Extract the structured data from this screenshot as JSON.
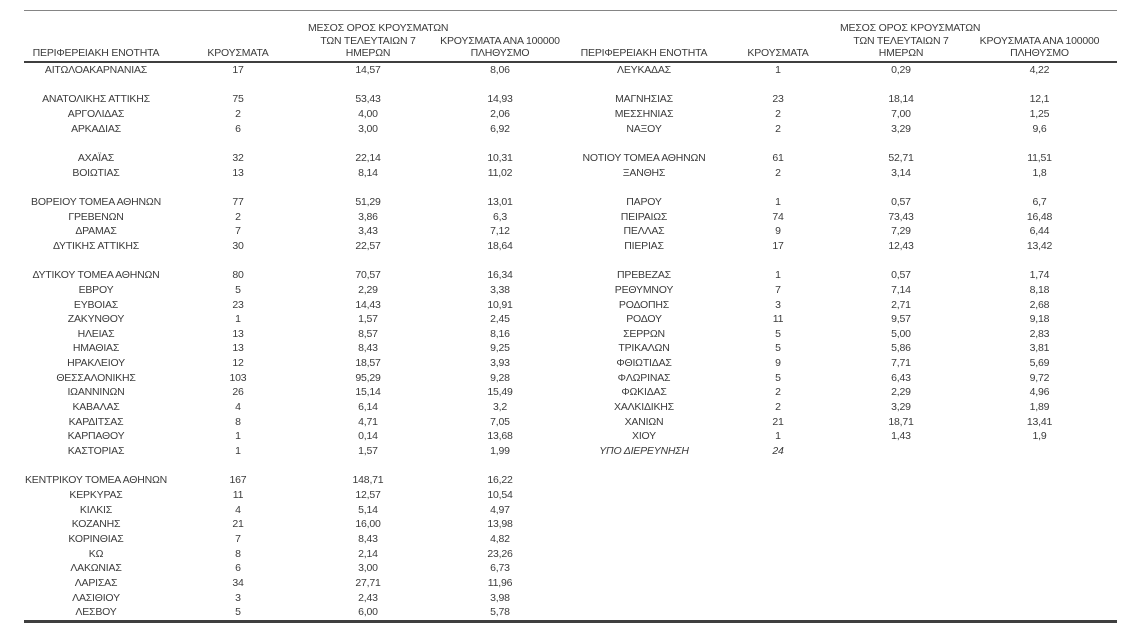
{
  "header": {
    "region": "ΠΕΡΙΦΕΡΕΙΑΚΗ ΕΝΟΤΗΤΑ",
    "cases": "ΚΡΟΥΣΜΑΤΑ",
    "avg7": [
      "ΜΕΣΟΣ ΟΡΟΣ ΚΡΟΥΣΜΑΤΩΝ",
      "ΤΩΝ ΤΕΛΕΥΤΑΙΩΝ 7",
      "ΗΜΕΡΩΝ"
    ],
    "per100k": [
      "ΚΡΟΥΣΜΑΤΑ ΑΝΑ 100000",
      "ΠΛΗΘΥΣΜΟ"
    ]
  },
  "rows": [
    {
      "left": {
        "name": "ΑΙΤΩΛΟΑΚΑΡΝΑΝΙΑΣ",
        "cases": "17",
        "avg7": "14,57",
        "per100k": "8,06"
      },
      "right": {
        "name": "ΛΕΥΚΑΔΑΣ",
        "cases": "1",
        "avg7": "0,29",
        "per100k": "4,22"
      }
    },
    {
      "left": null,
      "right": null
    },
    {
      "left": {
        "name": "ΑΝΑΤΟΛΙΚΗΣ ΑΤΤΙΚΗΣ",
        "cases": "75",
        "avg7": "53,43",
        "per100k": "14,93"
      },
      "right": {
        "name": "ΜΑΓΝΗΣΙΑΣ",
        "cases": "23",
        "avg7": "18,14",
        "per100k": "12,1"
      }
    },
    {
      "left": {
        "name": "ΑΡΓΟΛΙΔΑΣ",
        "cases": "2",
        "avg7": "4,00",
        "per100k": "2,06"
      },
      "right": {
        "name": "ΜΕΣΣΗΝΙΑΣ",
        "cases": "2",
        "avg7": "7,00",
        "per100k": "1,25"
      }
    },
    {
      "left": {
        "name": "ΑΡΚΑΔΙΑΣ",
        "cases": "6",
        "avg7": "3,00",
        "per100k": "6,92"
      },
      "right": {
        "name": "ΝΑΞΟΥ",
        "cases": "2",
        "avg7": "3,29",
        "per100k": "9,6"
      }
    },
    {
      "left": null,
      "right": null
    },
    {
      "left": {
        "name": "ΑΧΑΪΑΣ",
        "cases": "32",
        "avg7": "22,14",
        "per100k": "10,31"
      },
      "right": {
        "name": "ΝΟΤΙΟΥ ΤΟΜΕΑ ΑΘΗΝΩΝ",
        "cases": "61",
        "avg7": "52,71",
        "per100k": "11,51"
      }
    },
    {
      "left": {
        "name": "ΒΟΙΩΤΙΑΣ",
        "cases": "13",
        "avg7": "8,14",
        "per100k": "11,02"
      },
      "right": {
        "name": "ΞΑΝΘΗΣ",
        "cases": "2",
        "avg7": "3,14",
        "per100k": "1,8"
      }
    },
    {
      "left": null,
      "right": null
    },
    {
      "left": {
        "name": "ΒΟΡΕΙΟΥ ΤΟΜΕΑ ΑΘΗΝΩΝ",
        "cases": "77",
        "avg7": "51,29",
        "per100k": "13,01"
      },
      "right": {
        "name": "ΠΑΡΟΥ",
        "cases": "1",
        "avg7": "0,57",
        "per100k": "6,7"
      }
    },
    {
      "left": {
        "name": "ΓΡΕΒΕΝΩΝ",
        "cases": "2",
        "avg7": "3,86",
        "per100k": "6,3"
      },
      "right": {
        "name": "ΠΕΙΡΑΙΩΣ",
        "cases": "74",
        "avg7": "73,43",
        "per100k": "16,48"
      }
    },
    {
      "left": {
        "name": "ΔΡΑΜΑΣ",
        "cases": "7",
        "avg7": "3,43",
        "per100k": "7,12"
      },
      "right": {
        "name": "ΠΕΛΛΑΣ",
        "cases": "9",
        "avg7": "7,29",
        "per100k": "6,44"
      }
    },
    {
      "left": {
        "name": "ΔΥΤΙΚΗΣ ΑΤΤΙΚΗΣ",
        "cases": "30",
        "avg7": "22,57",
        "per100k": "18,64"
      },
      "right": {
        "name": "ΠΙΕΡΙΑΣ",
        "cases": "17",
        "avg7": "12,43",
        "per100k": "13,42"
      }
    },
    {
      "left": null,
      "right": null
    },
    {
      "left": {
        "name": "ΔΥΤΙΚΟΥ ΤΟΜΕΑ ΑΘΗΝΩΝ",
        "cases": "80",
        "avg7": "70,57",
        "per100k": "16,34"
      },
      "right": {
        "name": "ΠΡΕΒΕΖΑΣ",
        "cases": "1",
        "avg7": "0,57",
        "per100k": "1,74"
      }
    },
    {
      "left": {
        "name": "ΕΒΡΟΥ",
        "cases": "5",
        "avg7": "2,29",
        "per100k": "3,38"
      },
      "right": {
        "name": "ΡΕΘΥΜΝΟΥ",
        "cases": "7",
        "avg7": "7,14",
        "per100k": "8,18"
      }
    },
    {
      "left": {
        "name": "ΕΥΒΟΙΑΣ",
        "cases": "23",
        "avg7": "14,43",
        "per100k": "10,91"
      },
      "right": {
        "name": "ΡΟΔΟΠΗΣ",
        "cases": "3",
        "avg7": "2,71",
        "per100k": "2,68"
      }
    },
    {
      "left": {
        "name": "ΖΑΚΥΝΘΟΥ",
        "cases": "1",
        "avg7": "1,57",
        "per100k": "2,45"
      },
      "right": {
        "name": "ΡΟΔΟΥ",
        "cases": "11",
        "avg7": "9,57",
        "per100k": "9,18"
      }
    },
    {
      "left": {
        "name": "ΗΛΕΙΑΣ",
        "cases": "13",
        "avg7": "8,57",
        "per100k": "8,16"
      },
      "right": {
        "name": "ΣΕΡΡΩΝ",
        "cases": "5",
        "avg7": "5,00",
        "per100k": "2,83"
      }
    },
    {
      "left": {
        "name": "ΗΜΑΘΙΑΣ",
        "cases": "13",
        "avg7": "8,43",
        "per100k": "9,25"
      },
      "right": {
        "name": "ΤΡΙΚΑΛΩΝ",
        "cases": "5",
        "avg7": "5,86",
        "per100k": "3,81"
      }
    },
    {
      "left": {
        "name": "ΗΡΑΚΛΕΙΟΥ",
        "cases": "12",
        "avg7": "18,57",
        "per100k": "3,93"
      },
      "right": {
        "name": "ΦΘΙΩΤΙΔΑΣ",
        "cases": "9",
        "avg7": "7,71",
        "per100k": "5,69"
      }
    },
    {
      "left": {
        "name": "ΘΕΣΣΑΛΟΝΙΚΗΣ",
        "cases": "103",
        "avg7": "95,29",
        "per100k": "9,28"
      },
      "right": {
        "name": "ΦΛΩΡΙΝΑΣ",
        "cases": "5",
        "avg7": "6,43",
        "per100k": "9,72"
      }
    },
    {
      "left": {
        "name": "ΙΩΑΝΝΙΝΩΝ",
        "cases": "26",
        "avg7": "15,14",
        "per100k": "15,49"
      },
      "right": {
        "name": "ΦΩΚΙΔΑΣ",
        "cases": "2",
        "avg7": "2,29",
        "per100k": "4,96"
      }
    },
    {
      "left": {
        "name": "ΚΑΒΑΛΑΣ",
        "cases": "4",
        "avg7": "6,14",
        "per100k": "3,2"
      },
      "right": {
        "name": "ΧΑΛΚΙΔΙΚΗΣ",
        "cases": "2",
        "avg7": "3,29",
        "per100k": "1,89"
      }
    },
    {
      "left": {
        "name": "ΚΑΡΔΙΤΣΑΣ",
        "cases": "8",
        "avg7": "4,71",
        "per100k": "7,05"
      },
      "right": {
        "name": "ΧΑΝΙΩΝ",
        "cases": "21",
        "avg7": "18,71",
        "per100k": "13,41"
      }
    },
    {
      "left": {
        "name": "ΚΑΡΠΑΘΟΥ",
        "cases": "1",
        "avg7": "0,14",
        "per100k": "13,68"
      },
      "right": {
        "name": "ΧΙΟΥ",
        "cases": "1",
        "avg7": "1,43",
        "per100k": "1,9"
      }
    },
    {
      "left": {
        "name": "ΚΑΣΤΟΡΙΑΣ",
        "cases": "1",
        "avg7": "1,57",
        "per100k": "1,99"
      },
      "right": {
        "name": "ΥΠΟ ΔΙΕΡΕΥΝΗΣΗ",
        "cases": "24",
        "italic": true
      }
    },
    {
      "left": null,
      "right": null
    },
    {
      "left": {
        "name": "ΚΕΝΤΡΙΚΟΥ ΤΟΜΕΑ ΑΘΗΝΩΝ",
        "cases": "167",
        "avg7": "148,71",
        "per100k": "16,22"
      },
      "right": null
    },
    {
      "left": {
        "name": "ΚΕΡΚΥΡΑΣ",
        "cases": "11",
        "avg7": "12,57",
        "per100k": "10,54"
      },
      "right": null
    },
    {
      "left": {
        "name": "ΚΙΛΚΙΣ",
        "cases": "4",
        "avg7": "5,14",
        "per100k": "4,97"
      },
      "right": null
    },
    {
      "left": {
        "name": "ΚΟΖΑΝΗΣ",
        "cases": "21",
        "avg7": "16,00",
        "per100k": "13,98"
      },
      "right": null
    },
    {
      "left": {
        "name": "ΚΟΡΙΝΘΙΑΣ",
        "cases": "7",
        "avg7": "8,43",
        "per100k": "4,82"
      },
      "right": null
    },
    {
      "left": {
        "name": "ΚΩ",
        "cases": "8",
        "avg7": "2,14",
        "per100k": "23,26"
      },
      "right": null
    },
    {
      "left": {
        "name": "ΛΑΚΩΝΙΑΣ",
        "cases": "6",
        "avg7": "3,00",
        "per100k": "6,73"
      },
      "right": null
    },
    {
      "left": {
        "name": "ΛΑΡΙΣΑΣ",
        "cases": "34",
        "avg7": "27,71",
        "per100k": "11,96"
      },
      "right": null
    },
    {
      "left": {
        "name": "ΛΑΣΙΘΙΟΥ",
        "cases": "3",
        "avg7": "2,43",
        "per100k": "3,98"
      },
      "right": null
    },
    {
      "left": {
        "name": "ΛΕΣΒΟΥ",
        "cases": "5",
        "avg7": "6,00",
        "per100k": "5,78"
      },
      "right": null
    }
  ]
}
